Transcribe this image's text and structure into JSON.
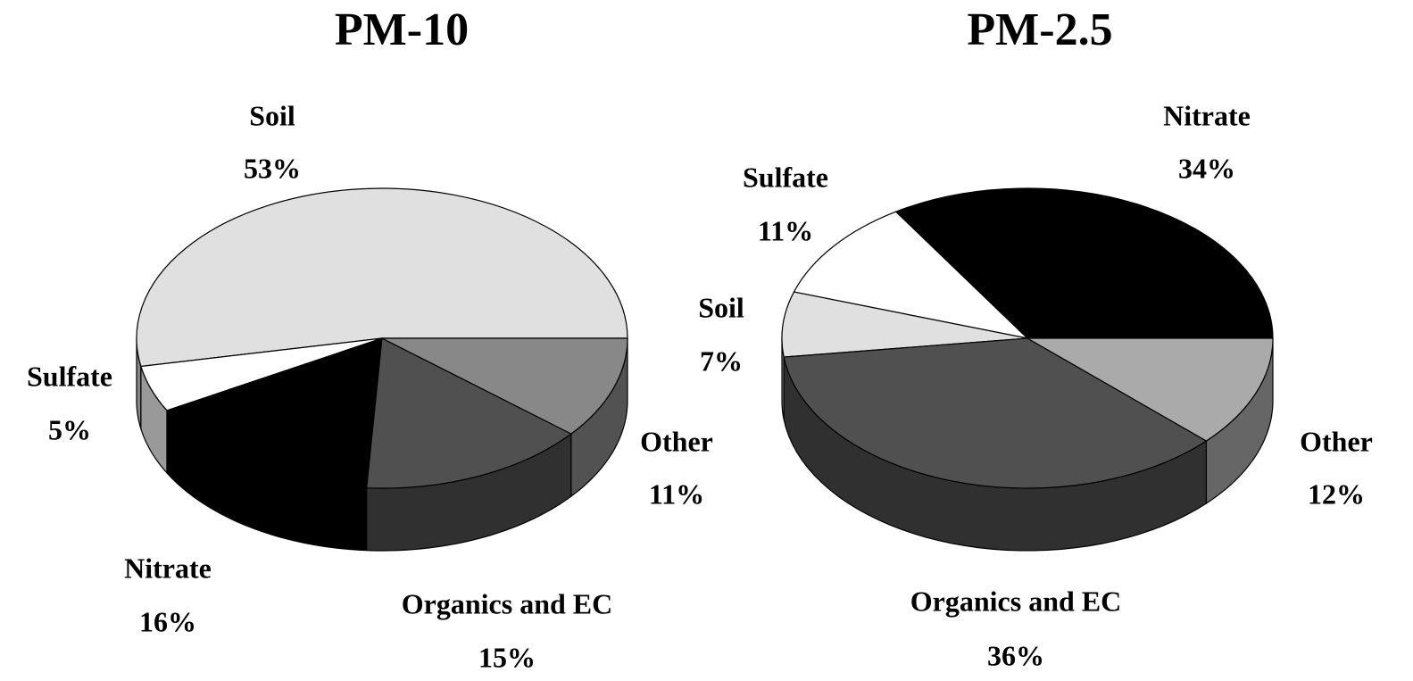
{
  "chart_data": [
    {
      "type": "pie3d",
      "title": "PM-10",
      "categories": [
        "Soil",
        "Sulfate",
        "Nitrate",
        "Organics and EC",
        "Other"
      ],
      "values": [
        53,
        5,
        16,
        15,
        11
      ],
      "value_labels": [
        "53%",
        "5%",
        "16%",
        "15%",
        "11%"
      ],
      "colors": [
        "#e0e0e0",
        "#ffffff",
        "#000000",
        "#505050",
        "#888888"
      ]
    },
    {
      "type": "pie3d",
      "title": "PM-2.5",
      "categories": [
        "Nitrate",
        "Sulfate",
        "Soil",
        "Organics and EC",
        "Other"
      ],
      "values": [
        34,
        11,
        7,
        36,
        12
      ],
      "value_labels": [
        "34%",
        "11%",
        "7%",
        "36%",
        "12%"
      ],
      "colors": [
        "#000000",
        "#ffffff",
        "#e0e0e0",
        "#505050",
        "#aaaaaa"
      ]
    }
  ]
}
